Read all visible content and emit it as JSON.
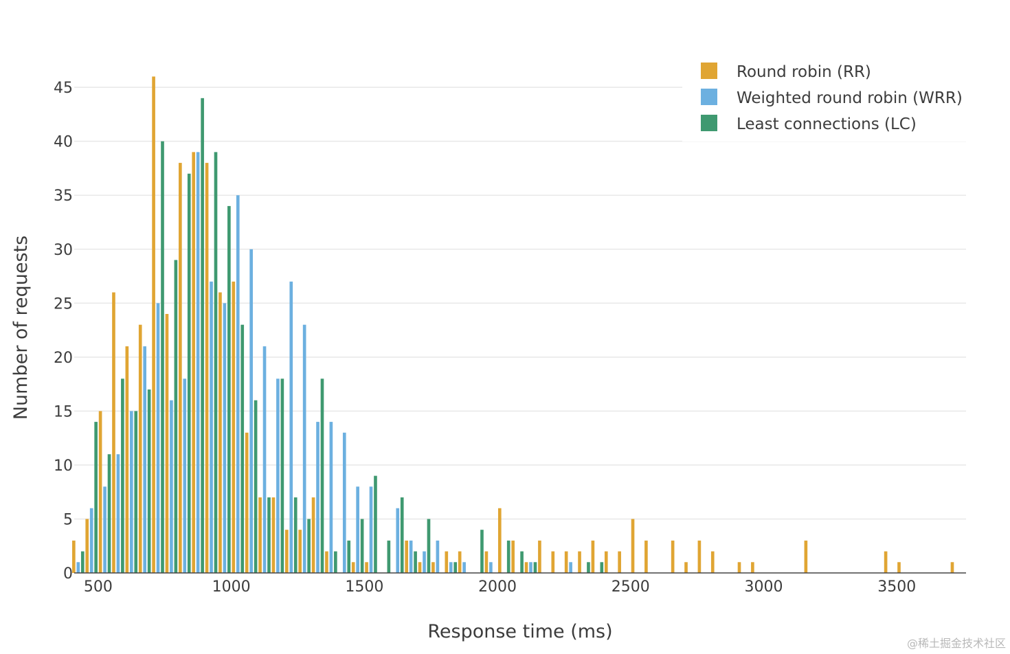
{
  "chart_data": {
    "type": "bar",
    "xlabel": "Response time (ms)",
    "ylabel": "Number of requests",
    "xlim": [
      410,
      3760
    ],
    "ylim": [
      0,
      48
    ],
    "x_ticks": [
      500,
      1000,
      1500,
      2000,
      2500,
      3000,
      3500
    ],
    "y_ticks": [
      0,
      5,
      10,
      15,
      20,
      25,
      30,
      35,
      40,
      45
    ],
    "bin_width": 50,
    "grid": true,
    "legend_position": "top-right",
    "series": [
      {
        "name": "Round robin (RR)",
        "color": "#E0A533",
        "points": [
          [
            425,
            3
          ],
          [
            475,
            5
          ],
          [
            525,
            15
          ],
          [
            575,
            26
          ],
          [
            625,
            21
          ],
          [
            675,
            23
          ],
          [
            725,
            46
          ],
          [
            775,
            24
          ],
          [
            825,
            38
          ],
          [
            875,
            39
          ],
          [
            925,
            38
          ],
          [
            975,
            26
          ],
          [
            1025,
            27
          ],
          [
            1075,
            13
          ],
          [
            1125,
            7
          ],
          [
            1175,
            7
          ],
          [
            1225,
            4
          ],
          [
            1275,
            4
          ],
          [
            1325,
            7
          ],
          [
            1375,
            2
          ],
          [
            1425,
            0
          ],
          [
            1475,
            1
          ],
          [
            1525,
            1
          ],
          [
            1575,
            0
          ],
          [
            1625,
            0
          ],
          [
            1675,
            3
          ],
          [
            1725,
            1
          ],
          [
            1775,
            1
          ],
          [
            1825,
            2
          ],
          [
            1875,
            2
          ],
          [
            1925,
            0
          ],
          [
            1975,
            2
          ],
          [
            2025,
            6
          ],
          [
            2075,
            3
          ],
          [
            2125,
            1
          ],
          [
            2175,
            3
          ],
          [
            2225,
            2
          ],
          [
            2275,
            2
          ],
          [
            2325,
            2
          ],
          [
            2375,
            3
          ],
          [
            2425,
            2
          ],
          [
            2475,
            2
          ],
          [
            2525,
            5
          ],
          [
            2575,
            3
          ],
          [
            2675,
            3
          ],
          [
            2725,
            1
          ],
          [
            2775,
            3
          ],
          [
            2825,
            2
          ],
          [
            2925,
            1
          ],
          [
            2975,
            1
          ],
          [
            3175,
            3
          ],
          [
            3475,
            2
          ],
          [
            3525,
            1
          ],
          [
            3725,
            1
          ]
        ]
      },
      {
        "name": "Weighted round robin (WRR)",
        "color": "#6CB0E0",
        "points": [
          [
            425,
            1
          ],
          [
            475,
            6
          ],
          [
            525,
            8
          ],
          [
            575,
            11
          ],
          [
            625,
            15
          ],
          [
            675,
            21
          ],
          [
            725,
            25
          ],
          [
            775,
            16
          ],
          [
            825,
            18
          ],
          [
            875,
            39
          ],
          [
            925,
            27
          ],
          [
            975,
            25
          ],
          [
            1025,
            35
          ],
          [
            1075,
            30
          ],
          [
            1125,
            21
          ],
          [
            1175,
            18
          ],
          [
            1225,
            27
          ],
          [
            1275,
            23
          ],
          [
            1325,
            14
          ],
          [
            1375,
            14
          ],
          [
            1425,
            13
          ],
          [
            1475,
            8
          ],
          [
            1525,
            8
          ],
          [
            1575,
            0
          ],
          [
            1625,
            6
          ],
          [
            1675,
            3
          ],
          [
            1725,
            2
          ],
          [
            1775,
            3
          ],
          [
            1825,
            1
          ],
          [
            1875,
            1
          ],
          [
            1925,
            0
          ],
          [
            1975,
            1
          ],
          [
            2025,
            0
          ],
          [
            2075,
            0
          ],
          [
            2125,
            1
          ],
          [
            2175,
            0
          ],
          [
            2225,
            0
          ],
          [
            2275,
            1
          ],
          [
            2325,
            0
          ],
          [
            2375,
            0
          ]
        ]
      },
      {
        "name": "Least connections (LC)",
        "color": "#3F9970",
        "points": [
          [
            425,
            2
          ],
          [
            475,
            14
          ],
          [
            525,
            11
          ],
          [
            575,
            18
          ],
          [
            625,
            15
          ],
          [
            675,
            17
          ],
          [
            725,
            40
          ],
          [
            775,
            29
          ],
          [
            825,
            37
          ],
          [
            875,
            44
          ],
          [
            925,
            39
          ],
          [
            975,
            34
          ],
          [
            1025,
            23
          ],
          [
            1075,
            16
          ],
          [
            1125,
            7
          ],
          [
            1175,
            18
          ],
          [
            1225,
            7
          ],
          [
            1275,
            5
          ],
          [
            1325,
            18
          ],
          [
            1375,
            2
          ],
          [
            1425,
            3
          ],
          [
            1475,
            5
          ],
          [
            1525,
            9
          ],
          [
            1575,
            3
          ],
          [
            1625,
            7
          ],
          [
            1675,
            2
          ],
          [
            1725,
            5
          ],
          [
            1775,
            0
          ],
          [
            1825,
            1
          ],
          [
            1875,
            0
          ],
          [
            1925,
            4
          ],
          [
            1975,
            0
          ],
          [
            2025,
            3
          ],
          [
            2075,
            2
          ],
          [
            2125,
            1
          ],
          [
            2175,
            0
          ],
          [
            2225,
            0
          ],
          [
            2275,
            0
          ],
          [
            2325,
            1
          ],
          [
            2375,
            1
          ]
        ]
      }
    ]
  },
  "watermark": "@稀土掘金技术社区"
}
